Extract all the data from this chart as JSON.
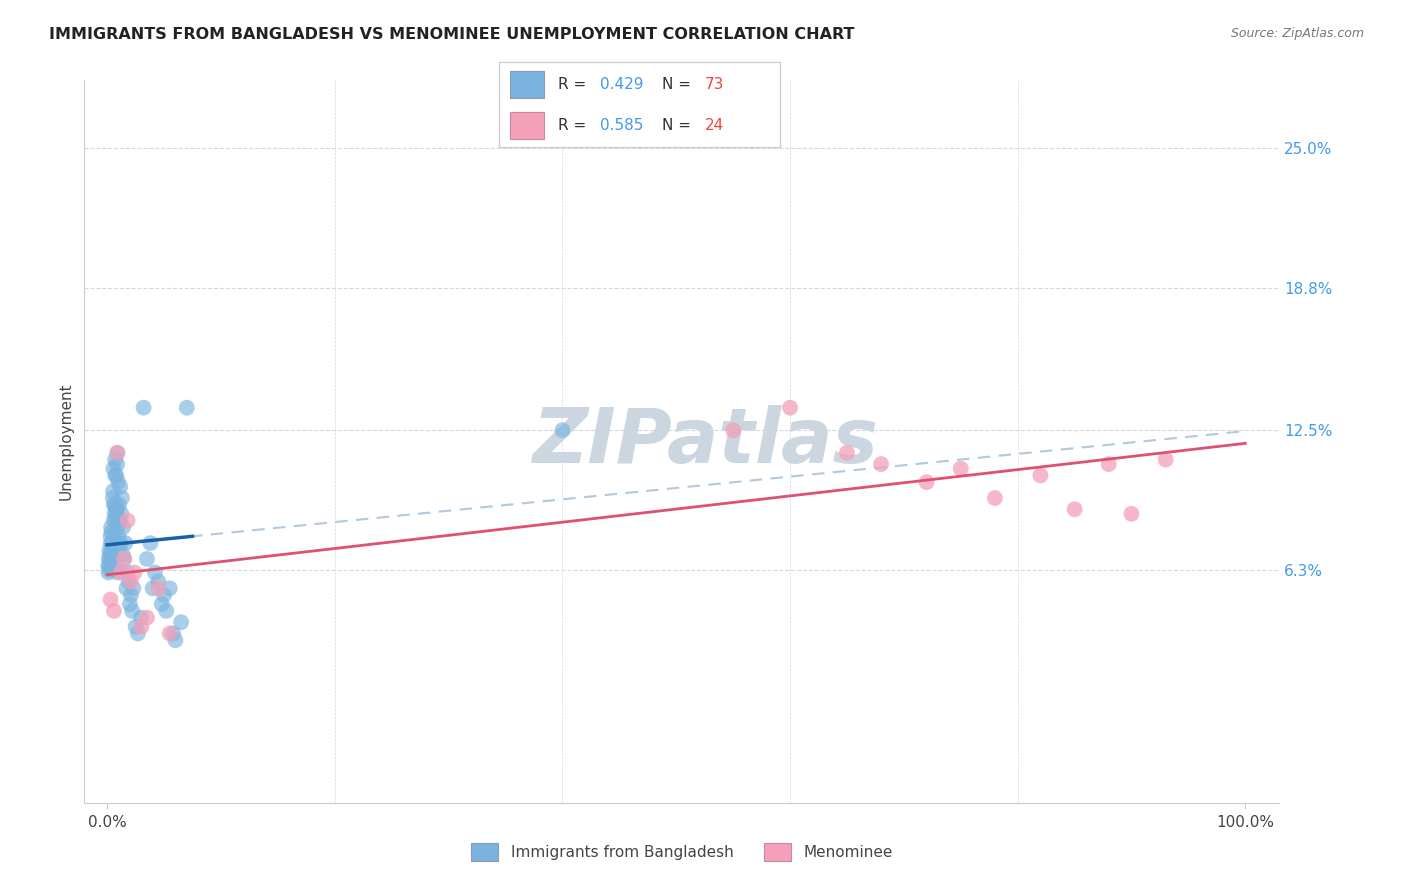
{
  "title": "IMMIGRANTS FROM BANGLADESH VS MENOMINEE UNEMPLOYMENT CORRELATION CHART",
  "source": "Source: ZipAtlas.com",
  "ylabel": "Unemployment",
  "xlim": [
    -2,
    103
  ],
  "ylim": [
    -4,
    28
  ],
  "ytick_vals": [
    6.3,
    12.5,
    18.8,
    25.0
  ],
  "ytick_labels": [
    "6.3%",
    "12.5%",
    "18.8%",
    "25.0%"
  ],
  "xtick_vals": [
    0,
    100
  ],
  "xtick_labels": [
    "0.0%",
    "100.0%"
  ],
  "legend1_r1": "0.429",
  "legend1_n1": "73",
  "legend1_r2": "0.585",
  "legend1_n2": "24",
  "legend_blue_label": "Immigrants from Bangladesh",
  "legend_pink_label": "Menominee",
  "blue_scatter_color": "#7ab4de",
  "pink_scatter_color": "#f4a0b8",
  "blue_line_color": "#1a5faa",
  "pink_line_color": "#e05070",
  "blue_dash_color": "#b0c8e0",
  "r_text_color": "#4499ee",
  "n_text_color": "#ee4444",
  "grid_color": "#d8d8d8",
  "title_color": "#222222",
  "axis_label_color": "#444444",
  "background": "#ffffff",
  "watermark_color": "#ccd6e0",
  "blue_x": [
    0.1,
    0.15,
    0.2,
    0.25,
    0.3,
    0.35,
    0.4,
    0.45,
    0.5,
    0.55,
    0.6,
    0.65,
    0.7,
    0.75,
    0.8,
    0.85,
    0.9,
    0.95,
    1.0,
    1.05,
    1.1,
    1.15,
    1.2,
    1.25,
    1.3,
    1.35,
    1.4,
    1.5,
    1.6,
    1.7,
    1.8,
    1.9,
    2.0,
    2.1,
    2.2,
    2.3,
    2.5,
    2.7,
    3.0,
    3.2,
    3.5,
    3.8,
    4.0,
    4.2,
    4.5,
    4.8,
    5.0,
    5.2,
    5.5,
    5.8,
    6.0,
    6.5,
    7.0,
    0.12,
    0.18,
    0.22,
    0.28,
    0.32,
    0.38,
    0.42,
    0.48,
    0.52,
    0.58,
    0.62,
    0.68,
    0.72,
    0.78,
    0.82,
    0.88,
    0.92,
    0.98,
    1.02,
    40.0
  ],
  "blue_y": [
    6.5,
    6.8,
    7.2,
    6.3,
    7.8,
    8.2,
    7.5,
    6.9,
    9.5,
    10.8,
    9.2,
    8.8,
    11.2,
    8.5,
    10.5,
    9.0,
    11.5,
    6.2,
    7.8,
    9.2,
    8.5,
    10.0,
    7.5,
    8.8,
    9.5,
    7.0,
    8.2,
    6.8,
    7.5,
    5.5,
    6.2,
    5.8,
    4.8,
    5.2,
    4.5,
    5.5,
    3.8,
    3.5,
    4.2,
    13.5,
    6.8,
    7.5,
    5.5,
    6.2,
    5.8,
    4.8,
    5.2,
    4.5,
    5.5,
    3.5,
    3.2,
    4.0,
    13.5,
    6.2,
    6.5,
    7.0,
    6.8,
    7.5,
    8.0,
    7.2,
    6.5,
    9.8,
    8.5,
    7.8,
    9.2,
    10.5,
    9.0,
    8.8,
    11.0,
    8.2,
    10.2,
    7.5,
    12.5
  ],
  "pink_x": [
    0.3,
    0.6,
    0.9,
    1.2,
    1.5,
    1.8,
    2.1,
    2.4,
    3.0,
    3.5,
    4.5,
    5.5,
    55.0,
    60.0,
    65.0,
    68.0,
    72.0,
    75.0,
    78.0,
    82.0,
    85.0,
    88.0,
    90.0,
    93.0
  ],
  "pink_y": [
    5.0,
    4.5,
    11.5,
    6.2,
    6.8,
    8.5,
    5.8,
    6.2,
    3.8,
    4.2,
    5.5,
    3.5,
    12.5,
    13.5,
    11.5,
    11.0,
    10.2,
    10.8,
    9.5,
    10.5,
    9.0,
    11.0,
    8.8,
    11.2
  ]
}
